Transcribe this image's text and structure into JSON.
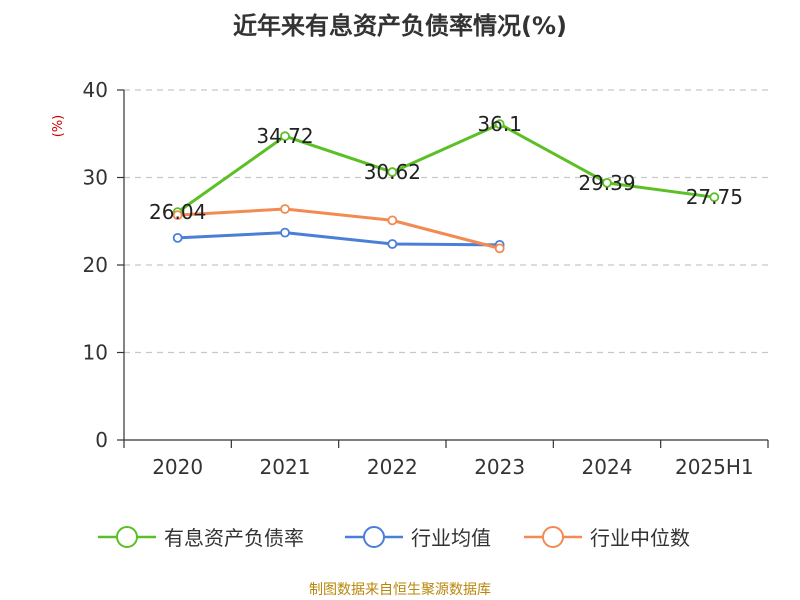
{
  "colors": {
    "series1": "#5cbf26",
    "series2": "#4a7fd8",
    "series3": "#f28a52",
    "unit": "#cc0000",
    "source": "#b8860b"
  },
  "chart_data": {
    "type": "line",
    "title": "近年来有息资产负债率情况(%)",
    "ylabel": "(%)",
    "xlabel": "",
    "categories": [
      "2020",
      "2021",
      "2022",
      "2023",
      "2024",
      "2025H1"
    ],
    "ylim": [
      0,
      40
    ],
    "yticks": [
      0,
      10,
      20,
      30,
      40
    ],
    "grid": "horizontal-dashed",
    "legend_position": "bottom",
    "series": [
      {
        "name": "有息资产负债率",
        "values": [
          26.04,
          34.72,
          30.62,
          36.1,
          29.39,
          27.75
        ],
        "labels": [
          "26.04",
          "34.72",
          "30.62",
          "36.1",
          "29.39",
          "27.75"
        ]
      },
      {
        "name": "行业均值",
        "values": [
          23.1,
          23.7,
          22.4,
          22.3,
          null,
          null
        ]
      },
      {
        "name": "行业中位数",
        "values": [
          25.7,
          26.4,
          25.1,
          21.9,
          null,
          null
        ]
      }
    ]
  },
  "source_note": "制图数据来自恒生聚源数据库"
}
